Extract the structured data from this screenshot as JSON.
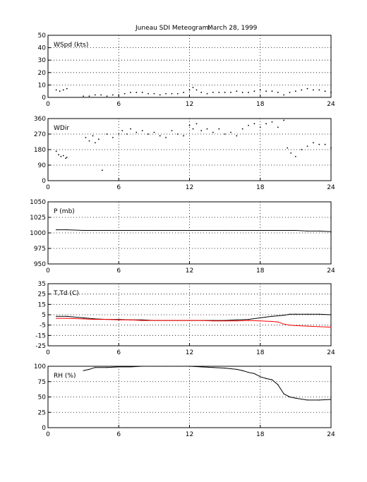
{
  "figure": {
    "title": "Juneau SDI Meteogram:",
    "date": "March 28, 1999"
  },
  "chart_data": [
    {
      "type": "scatter",
      "panel_label": "WSpd (kts)",
      "xlim": [
        0,
        24
      ],
      "ylim": [
        0,
        50
      ],
      "xticks": [
        0,
        6,
        12,
        18,
        24
      ],
      "yticks": [
        0,
        10,
        20,
        30,
        40,
        50
      ],
      "grid": true,
      "series": [
        {
          "color": "#000000",
          "x": [
            0.7,
            1.0,
            1.3,
            1.6,
            3.0,
            3.5,
            4.0,
            4.5,
            5.0,
            5.5,
            6.0,
            6.5,
            7.0,
            7.5,
            8.0,
            8.5,
            9.0,
            9.5,
            10.0,
            10.5,
            11.0,
            11.5,
            12.0,
            12.3,
            12.6,
            13.0,
            13.5,
            14.0,
            14.5,
            15.0,
            15.5,
            16.0,
            16.5,
            17.0,
            17.5,
            18.0,
            18.5,
            19.0,
            19.5,
            20.0,
            20.5,
            21.0,
            21.5,
            22.0,
            22.5,
            23.0,
            23.5,
            24.0
          ],
          "y": [
            6,
            5,
            6,
            7,
            1,
            1,
            2,
            2,
            1,
            2,
            2,
            3,
            4,
            4,
            4,
            3,
            3,
            2,
            3,
            3,
            3,
            4,
            6,
            8,
            6,
            4,
            3,
            4,
            4,
            4,
            4,
            5,
            4,
            4,
            5,
            6,
            5,
            5,
            4,
            2,
            4,
            5,
            6,
            7,
            6,
            6,
            5,
            4
          ]
        }
      ]
    },
    {
      "type": "scatter",
      "panel_label": "WDir",
      "xlim": [
        0,
        24
      ],
      "ylim": [
        0,
        360
      ],
      "xticks": [
        0,
        6,
        12,
        18,
        24
      ],
      "yticks": [
        0,
        90,
        180,
        270,
        360
      ],
      "grid": true,
      "series": [
        {
          "color": "#000000",
          "x": [
            0.7,
            0.9,
            1.1,
            1.3,
            1.5,
            1.6,
            3.2,
            3.5,
            3.8,
            4.0,
            4.3,
            4.6,
            5.0,
            5.5,
            6.0,
            6.3,
            6.7,
            7.0,
            7.5,
            8.0,
            8.5,
            9.0,
            9.5,
            10.0,
            10.5,
            11.0,
            11.5,
            12.0,
            12.3,
            12.6,
            13.0,
            13.5,
            14.0,
            14.5,
            15.0,
            15.5,
            16.0,
            16.5,
            17.0,
            17.5,
            18.0,
            18.5,
            19.0,
            19.5,
            20.0,
            20.3,
            20.6,
            21.0,
            21.5,
            22.0,
            22.5,
            23.0,
            23.5,
            24.0
          ],
          "y": [
            170,
            150,
            140,
            145,
            130,
            135,
            250,
            230,
            260,
            220,
            240,
            60,
            270,
            250,
            270,
            290,
            270,
            300,
            280,
            290,
            270,
            280,
            260,
            250,
            290,
            270,
            260,
            320,
            300,
            330,
            290,
            300,
            280,
            300,
            270,
            280,
            260,
            300,
            320,
            330,
            310,
            330,
            340,
            310,
            350,
            190,
            160,
            140,
            180,
            200,
            220,
            210,
            210,
            190
          ]
        }
      ]
    },
    {
      "type": "line",
      "panel_label": "P (mb)",
      "xlim": [
        0,
        24
      ],
      "ylim": [
        950,
        1050
      ],
      "xticks": [
        0,
        6,
        12,
        18,
        24
      ],
      "yticks": [
        950,
        975,
        1000,
        1025,
        1050
      ],
      "grid": true,
      "series": [
        {
          "color": "#000000",
          "x": [
            0.7,
            1.6,
            3.0,
            4.0,
            5.0,
            5.5,
            6.0,
            9.0,
            12.0,
            15.0,
            18.0,
            21.0,
            22.0,
            23.0,
            24.0
          ],
          "y": [
            1005,
            1005,
            1004,
            1004,
            1004,
            1004,
            1004,
            1004,
            1004,
            1004,
            1004,
            1004,
            1003,
            1003,
            1002
          ]
        }
      ]
    },
    {
      "type": "line",
      "panel_label": "T,Td (C)",
      "xlim": [
        0,
        24
      ],
      "ylim": [
        -25,
        35
      ],
      "xticks": [
        0,
        6,
        12,
        18,
        24
      ],
      "yticks": [
        -25,
        -15,
        -5,
        5,
        15,
        25,
        35
      ],
      "grid": true,
      "series": [
        {
          "color": "#000000",
          "x": [
            0.7,
            1.6,
            3.0,
            4.0,
            5.0,
            6.0,
            7.0,
            8.0,
            9.0,
            10.0,
            11.0,
            12.0,
            13.0,
            14.0,
            15.0,
            16.0,
            17.0,
            18.0,
            19.0,
            20.0,
            20.5,
            21.0,
            22.0,
            23.0,
            24.0
          ],
          "y": [
            3.5,
            3.5,
            2,
            1,
            0.5,
            0.5,
            0,
            0,
            -0.5,
            -0.5,
            -0.5,
            -0.5,
            -0.5,
            -0.5,
            -0.5,
            0,
            0.5,
            2,
            3.5,
            4.5,
            5.5,
            5.5,
            5.5,
            5.5,
            5
          ]
        },
        {
          "color": "#ff0000",
          "x": [
            0.7,
            1.6,
            3.0,
            4.0,
            5.0,
            6.0,
            7.0,
            8.0,
            9.0,
            10.0,
            11.0,
            12.0,
            13.0,
            14.0,
            15.0,
            16.0,
            17.0,
            18.0,
            19.0,
            19.5,
            20.0,
            20.5,
            21.0,
            22.0,
            23.0,
            24.0
          ],
          "y": [
            1.5,
            1.5,
            1,
            0.5,
            0.5,
            0,
            0,
            -0.5,
            -0.5,
            -0.5,
            -0.5,
            -0.5,
            -0.5,
            -1,
            -1,
            -1,
            -0.5,
            -1,
            -1.5,
            -2,
            -4,
            -5,
            -5.5,
            -6,
            -6.5,
            -7
          ]
        }
      ]
    },
    {
      "type": "line",
      "panel_label": "RH (%)",
      "xlim": [
        0,
        24
      ],
      "ylim": [
        0,
        100
      ],
      "xticks": [
        0,
        6,
        12,
        18,
        24
      ],
      "yticks": [
        0,
        25,
        50,
        75,
        100
      ],
      "grid": true,
      "series": [
        {
          "color": "#000000",
          "x": [
            3.0,
            3.5,
            4.0,
            5.0,
            6.0,
            7.0,
            8.0,
            9.0,
            10.0,
            11.0,
            12.0,
            13.0,
            14.0,
            15.0,
            16.0,
            16.5,
            17.0,
            17.5,
            18.0,
            18.5,
            19.0,
            19.5,
            20.0,
            20.5,
            21.0,
            22.0,
            23.0,
            24.0
          ],
          "y": [
            93,
            95,
            98,
            98,
            99,
            99,
            100,
            100,
            100,
            100,
            100,
            99,
            98,
            97,
            95,
            93,
            90,
            88,
            83,
            80,
            78,
            70,
            55,
            50,
            48,
            45,
            45,
            46
          ]
        }
      ]
    }
  ]
}
